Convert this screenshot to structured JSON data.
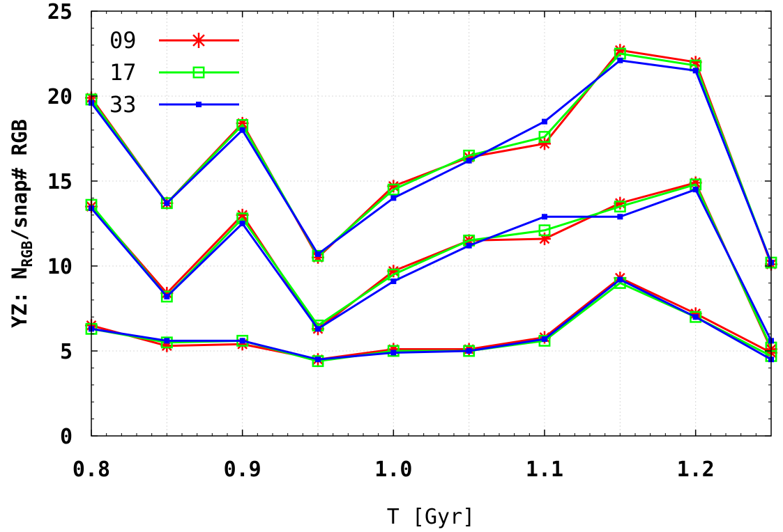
{
  "chart_data": {
    "type": "line",
    "title": "",
    "xlabel": "T [Gyr]",
    "ylabel": {
      "prefix": "YZ: N",
      "subscript": "RGB",
      "suffix": "/snap# RGB"
    },
    "xlim": [
      0.8,
      1.25
    ],
    "ylim": [
      0,
      25
    ],
    "xticks": [
      "0.8",
      "0.9",
      "1.0",
      "1.1",
      "1.2"
    ],
    "xtick_values": [
      0.8,
      0.9,
      1.0,
      1.1,
      1.2
    ],
    "yticks": [
      "0",
      "5",
      "10",
      "15",
      "20",
      "25"
    ],
    "ytick_values": [
      0,
      5,
      10,
      15,
      20,
      25
    ],
    "grid": true,
    "legend_position": "top-left",
    "x": [
      0.8,
      0.85,
      0.9,
      0.95,
      1.0,
      1.05,
      1.1,
      1.15,
      1.2,
      1.25
    ],
    "series": [
      {
        "name": "09",
        "group": "upper",
        "color": "#ff0000",
        "marker": "asterisk",
        "values": [
          19.9,
          13.7,
          18.4,
          10.5,
          14.7,
          16.4,
          17.2,
          22.7,
          22.0,
          10.1
        ]
      },
      {
        "name": "17",
        "group": "upper",
        "color": "#00ff00",
        "marker": "open-square",
        "values": [
          19.8,
          13.7,
          18.3,
          10.6,
          14.5,
          16.5,
          17.6,
          22.5,
          21.8,
          10.2
        ]
      },
      {
        "name": "33",
        "group": "upper",
        "color": "#0000ff",
        "marker": "filled-square",
        "values": [
          19.6,
          13.7,
          18.0,
          10.7,
          14.0,
          16.2,
          18.5,
          22.1,
          21.5,
          10.2
        ]
      },
      {
        "name": "09",
        "group": "middle",
        "color": "#ff0000",
        "marker": "asterisk",
        "values": [
          13.5,
          8.4,
          13.0,
          6.3,
          9.7,
          11.5,
          11.6,
          13.7,
          14.9,
          5.1
        ]
      },
      {
        "name": "17",
        "group": "middle",
        "color": "#00ff00",
        "marker": "open-square",
        "values": [
          13.6,
          8.2,
          12.8,
          6.5,
          9.5,
          11.5,
          12.1,
          13.5,
          14.8,
          5.2
        ]
      },
      {
        "name": "33",
        "group": "middle",
        "color": "#0000ff",
        "marker": "filled-square",
        "values": [
          13.4,
          8.2,
          12.5,
          6.3,
          9.1,
          11.2,
          12.9,
          12.9,
          14.5,
          5.6
        ]
      },
      {
        "name": "09",
        "group": "lower",
        "color": "#ff0000",
        "marker": "asterisk",
        "values": [
          6.5,
          5.3,
          5.4,
          4.5,
          5.1,
          5.1,
          5.8,
          9.3,
          7.2,
          4.9
        ]
      },
      {
        "name": "17",
        "group": "lower",
        "color": "#00ff00",
        "marker": "open-square",
        "values": [
          6.3,
          5.5,
          5.6,
          4.4,
          5.0,
          5.0,
          5.6,
          9.0,
          7.0,
          4.7
        ]
      },
      {
        "name": "33",
        "group": "lower",
        "color": "#0000ff",
        "marker": "filled-square",
        "values": [
          6.3,
          5.6,
          5.6,
          4.5,
          4.9,
          5.0,
          5.7,
          9.2,
          7.0,
          4.5
        ]
      }
    ],
    "legend": [
      {
        "label": "09",
        "color": "#ff0000",
        "marker": "asterisk"
      },
      {
        "label": "17",
        "color": "#00ff00",
        "marker": "open-square"
      },
      {
        "label": "33",
        "color": "#0000ff",
        "marker": "filled-square"
      }
    ]
  }
}
